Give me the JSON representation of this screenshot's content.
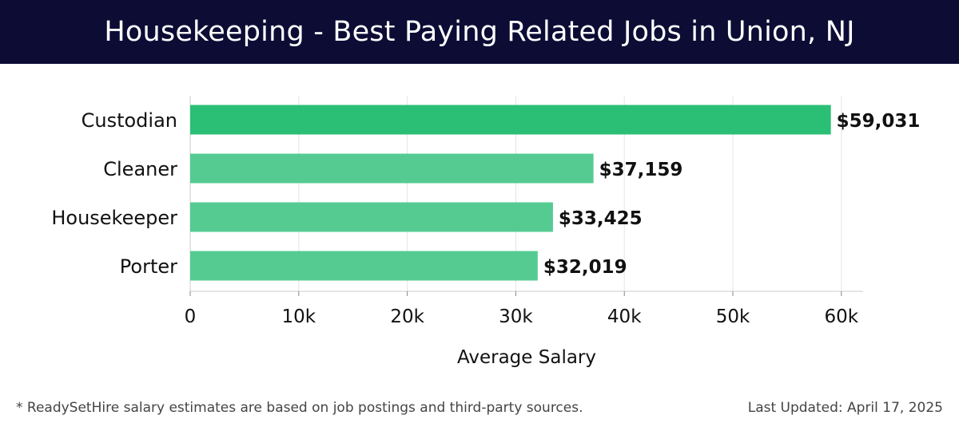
{
  "header": {
    "title": "Housekeeping - Best Paying Related Jobs in Union, NJ"
  },
  "chart_data": {
    "type": "bar",
    "orientation": "horizontal",
    "title": "Housekeeping - Best Paying Related Jobs in Union, NJ",
    "xlabel": "Average Salary",
    "ylabel": "",
    "xlim": [
      0,
      62000
    ],
    "x_ticks": [
      0,
      10000,
      20000,
      30000,
      40000,
      50000,
      60000
    ],
    "x_tick_labels": [
      "0",
      "10k",
      "20k",
      "30k",
      "40k",
      "50k",
      "60k"
    ],
    "categories": [
      "Custodian",
      "Cleaner",
      "Housekeeper",
      "Porter"
    ],
    "values": [
      59031,
      37159,
      33425,
      32019
    ],
    "value_labels": [
      "$59,031",
      "$37,159",
      "$33,425",
      "$32,019"
    ],
    "grid": true,
    "colors": {
      "highlight": "#2bbf76",
      "bar": "#55cb92",
      "grid": "#e4e4e4",
      "axis": "#cccccc"
    }
  },
  "footer": {
    "note": "* ReadySetHire salary estimates are based on job postings and third-party sources.",
    "updated": "Last Updated: April 17, 2025"
  }
}
